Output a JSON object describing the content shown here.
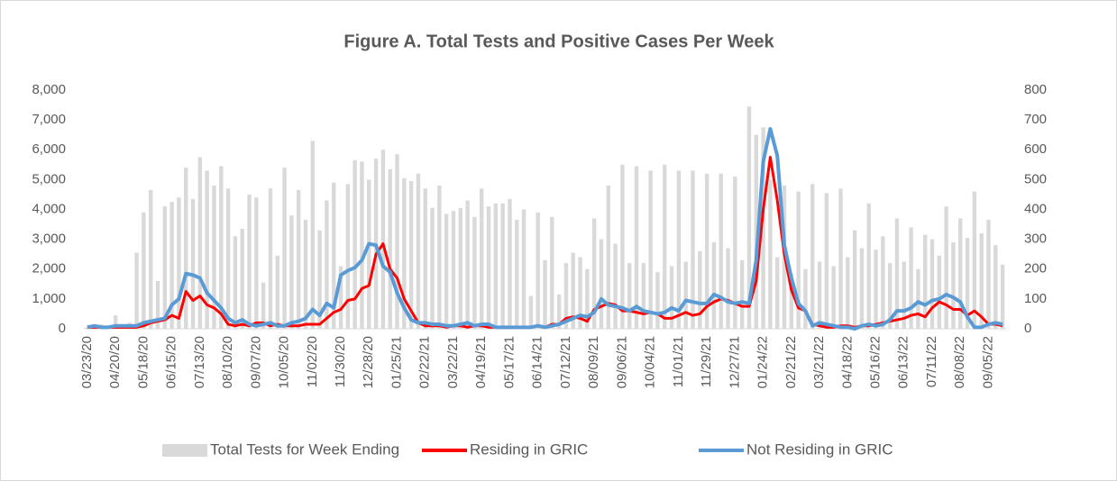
{
  "chart_data": {
    "type": "combo",
    "title": "Figure A. Total Tests and Positive Cases Per Week",
    "categories": [
      "03/23/20",
      null,
      null,
      null,
      "04/20/20",
      null,
      null,
      null,
      "05/18/20",
      null,
      null,
      null,
      "06/15/20",
      null,
      null,
      null,
      "07/13/20",
      null,
      null,
      null,
      "08/10/20",
      null,
      null,
      null,
      "09/07/20",
      null,
      null,
      null,
      "10/05/20",
      null,
      null,
      null,
      "11/02/20",
      null,
      null,
      null,
      "11/30/20",
      null,
      null,
      null,
      "12/28/20",
      null,
      null,
      null,
      "01/25/21",
      null,
      null,
      null,
      "02/22/21",
      null,
      null,
      null,
      "03/22/21",
      null,
      null,
      null,
      "04/19/21",
      null,
      null,
      null,
      "05/17/21",
      null,
      null,
      null,
      "06/14/21",
      null,
      null,
      null,
      "07/12/21",
      null,
      null,
      null,
      "08/09/21",
      null,
      null,
      null,
      "09/06/21",
      null,
      null,
      null,
      "10/04/21",
      null,
      null,
      null,
      "11/01/21",
      null,
      null,
      null,
      "11/29/21",
      null,
      null,
      null,
      "12/27/21",
      null,
      null,
      null,
      "01/24/22",
      null,
      null,
      null,
      "02/21/22",
      null,
      null,
      null,
      "03/21/22",
      null,
      null,
      null,
      "04/18/22",
      null,
      null,
      null,
      "05/16/22",
      null,
      null,
      null,
      "06/13/22",
      null,
      null,
      null,
      "07/11/22",
      null,
      null,
      null,
      "08/08/22",
      null,
      null,
      null,
      "09/05/22",
      null,
      null
    ],
    "series": [
      {
        "name": "Total Tests for Week Ending",
        "type": "bar",
        "axis": "y",
        "color": "#d9d9d9",
        "values": [
          50,
          100,
          150,
          100,
          450,
          150,
          200,
          2550,
          3900,
          4650,
          1600,
          4100,
          4250,
          4400,
          5400,
          4350,
          5750,
          5300,
          4800,
          5450,
          4700,
          3100,
          3350,
          4500,
          4400,
          1550,
          4700,
          2450,
          5400,
          3800,
          4650,
          3650,
          6300,
          3300,
          4300,
          4900,
          2100,
          4850,
          5650,
          5600,
          5000,
          5700,
          6000,
          5350,
          5850,
          5050,
          4950,
          5200,
          4700,
          4050,
          4800,
          3850,
          3950,
          4050,
          4300,
          3750,
          4700,
          4100,
          4200,
          4200,
          4350,
          3650,
          4000,
          1100,
          3900,
          2300,
          3750,
          1150,
          2200,
          2550,
          2400,
          2000,
          3700,
          3000,
          4800,
          2850,
          5500,
          2200,
          5450,
          2200,
          5300,
          1900,
          5500,
          2100,
          5300,
          2250,
          5300,
          2600,
          5200,
          2900,
          5200,
          2700,
          5100,
          2300,
          7450,
          6500,
          6750,
          5000,
          2400,
          4800,
          1850,
          4600,
          2000,
          4850,
          2250,
          4550,
          2100,
          4700,
          2400,
          3300,
          2700,
          4200,
          2650,
          3100,
          2200,
          3700,
          2250,
          3400,
          2000,
          3150,
          3000,
          2450,
          4100,
          2900,
          3700,
          3050,
          4600,
          3200,
          3650,
          2800,
          2150
        ]
      },
      {
        "name": "Residing in GRIC",
        "type": "line",
        "axis": "y2",
        "color": "#ff0000",
        "values": [
          5,
          5,
          5,
          5,
          5,
          5,
          5,
          5,
          10,
          20,
          25,
          30,
          45,
          35,
          125,
          95,
          110,
          80,
          70,
          50,
          15,
          10,
          15,
          10,
          20,
          20,
          10,
          15,
          10,
          10,
          10,
          15,
          15,
          15,
          35,
          55,
          65,
          95,
          100,
          135,
          145,
          250,
          285,
          200,
          170,
          100,
          60,
          20,
          10,
          10,
          10,
          5,
          10,
          10,
          5,
          10,
          10,
          5,
          5,
          5,
          5,
          5,
          5,
          5,
          10,
          5,
          15,
          15,
          35,
          40,
          35,
          25,
          65,
          75,
          85,
          80,
          60,
          60,
          55,
          50,
          55,
          50,
          35,
          35,
          45,
          55,
          45,
          50,
          75,
          90,
          100,
          95,
          85,
          75,
          75,
          160,
          400,
          575,
          430,
          250,
          130,
          70,
          60,
          15,
          10,
          5,
          5,
          10,
          10,
          5,
          10,
          10,
          15,
          20,
          25,
          30,
          35,
          45,
          50,
          40,
          70,
          90,
          80,
          65,
          65,
          45,
          60,
          40,
          15,
          15,
          10
        ]
      },
      {
        "name": "Not Residing in GRIC",
        "type": "line",
        "axis": "y2",
        "color": "#5b9bd5",
        "values": [
          5,
          10,
          5,
          5,
          10,
          10,
          10,
          10,
          20,
          25,
          30,
          35,
          80,
          100,
          185,
          180,
          170,
          120,
          95,
          70,
          35,
          20,
          30,
          15,
          10,
          15,
          20,
          10,
          10,
          20,
          25,
          35,
          65,
          45,
          85,
          70,
          180,
          195,
          205,
          230,
          285,
          280,
          210,
          190,
          120,
          70,
          30,
          20,
          20,
          15,
          15,
          10,
          10,
          15,
          20,
          10,
          15,
          15,
          5,
          5,
          5,
          5,
          5,
          5,
          10,
          5,
          10,
          15,
          25,
          35,
          45,
          40,
          55,
          100,
          80,
          75,
          70,
          60,
          75,
          60,
          55,
          50,
          55,
          70,
          60,
          95,
          90,
          85,
          85,
          115,
          105,
          90,
          85,
          90,
          85,
          230,
          560,
          670,
          580,
          280,
          170,
          85,
          60,
          10,
          20,
          15,
          10,
          5,
          5,
          0,
          10,
          15,
          10,
          15,
          30,
          60,
          60,
          70,
          90,
          80,
          95,
          100,
          115,
          105,
          90,
          40,
          5,
          5,
          15,
          20,
          15
        ]
      }
    ],
    "ylim": [
      0,
      8000
    ],
    "yticks": [
      0,
      {
        "value": 1000,
        "label": "1,000"
      },
      {
        "value": 2000,
        "label": "2,000"
      },
      {
        "value": 3000,
        "label": "3,000"
      },
      {
        "value": 4000,
        "label": "4,000"
      },
      {
        "value": 5000,
        "label": "5,000"
      },
      {
        "value": 6000,
        "label": "6,000"
      },
      {
        "value": 7000,
        "label": "7,000"
      },
      {
        "value": 8000,
        "label": "8,000"
      }
    ],
    "y2lim": [
      0,
      800
    ],
    "y2ticks": [
      0,
      100,
      200,
      300,
      400,
      500,
      600,
      700,
      800
    ],
    "grid": false,
    "legend": "bottom"
  }
}
